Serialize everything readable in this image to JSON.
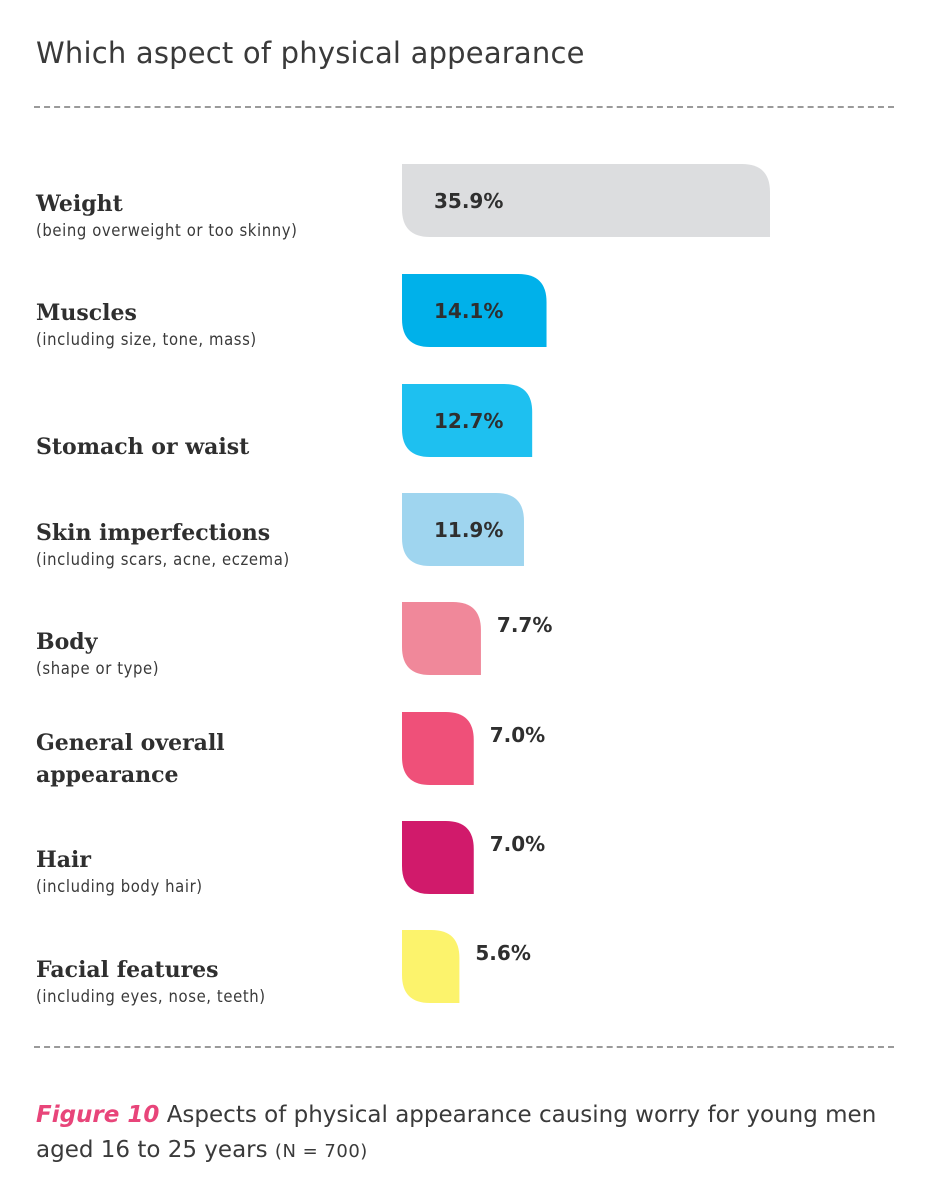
{
  "title": "Which aspect of physical appearance",
  "caption": {
    "figure_label": "Figure 10",
    "text": "Aspects of physical appearance causing worry for young men aged 16 to 25 years",
    "sample": "(N = 700)"
  },
  "colors": {
    "weight": "#dcdddf",
    "muscles": "#00b1ea",
    "stomach": "#1ec0f0",
    "skin": "#9fd5ef",
    "body": "#f0889a",
    "general": "#ef5079",
    "hair": "#d11a6b",
    "facial": "#fcf36c"
  },
  "chart_data": {
    "type": "bar",
    "orientation": "horizontal",
    "title": "Which aspect of physical appearance",
    "categories": [
      "Weight",
      "Muscles",
      "Stomach or waist",
      "Skin imperfections",
      "Body",
      "General overall appearance",
      "Hair",
      "Facial features"
    ],
    "subtitles": [
      "(being overweight or too skinny)",
      "(including size, tone, mass)",
      "",
      "(including scars, acne, eczema)",
      "(shape or type)",
      "",
      "(including body hair)",
      "(including eyes, nose, teeth)"
    ],
    "values": [
      35.9,
      14.1,
      12.7,
      11.9,
      7.7,
      7.0,
      7.0,
      5.6
    ],
    "value_labels": [
      "35.9%",
      "14.1%",
      "12.7%",
      "11.9%",
      "7.7%",
      "7.0%",
      "7.0%",
      "5.6%"
    ],
    "bar_colors": [
      "#dcdddf",
      "#00b1ea",
      "#1ec0f0",
      "#9fd5ef",
      "#f0889a",
      "#ef5079",
      "#d11a6b",
      "#fcf36c"
    ],
    "unit": "%",
    "xlim": [
      0,
      35.9
    ],
    "grid": false,
    "legend": "none"
  }
}
